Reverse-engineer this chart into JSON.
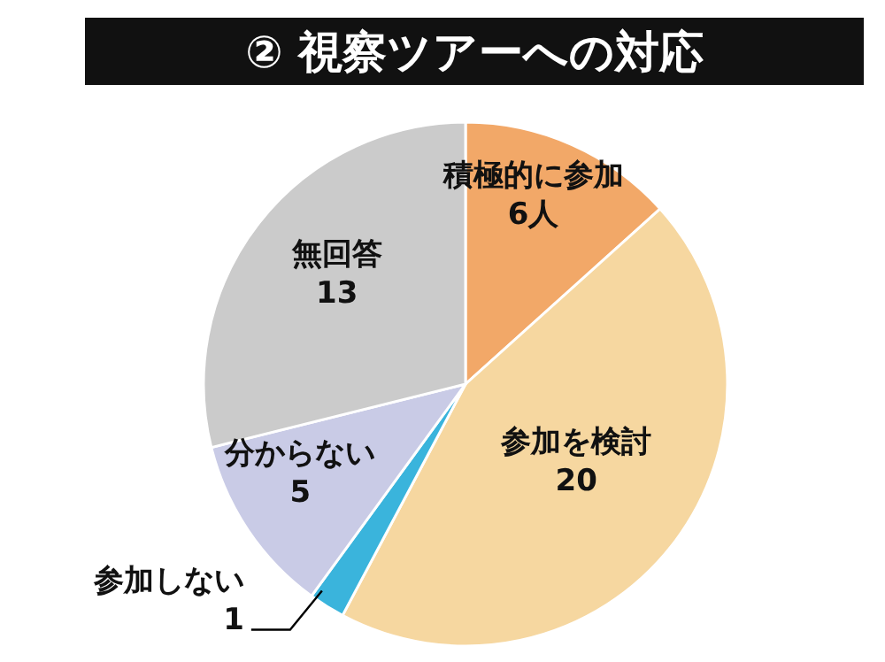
{
  "chart_data": {
    "type": "pie",
    "title": "② 視察ツアーへの対応",
    "categories": [
      "積極的に参加",
      "参加を検討",
      "参加しない",
      "分からない",
      "無回答"
    ],
    "values": [
      6,
      20,
      1,
      5,
      13
    ],
    "value_labels": [
      "6人",
      "20",
      "1",
      "5",
      "13"
    ],
    "colors": [
      "#f2a868",
      "#f6d7a0",
      "#3ab4dc",
      "#c9cbe6",
      "#cbcbcb"
    ],
    "legend": false
  }
}
